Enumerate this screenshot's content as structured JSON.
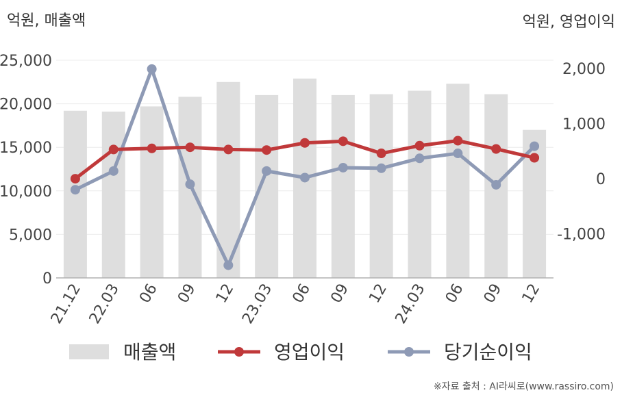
{
  "labels": {
    "left_unit": "억원, 매출액",
    "right_unit": "억원, 영업이익",
    "source": "※자료 출처 : AI라씨로(www.rassiro.com)"
  },
  "colors": {
    "bar": "#dedede",
    "operating": "#c0393a",
    "net": "#8e9ab5",
    "grid": "#ececec",
    "axis": "#b0b0b0"
  },
  "chart_data": {
    "type": "bar",
    "categories": [
      "21.12",
      "22.03",
      "06",
      "09",
      "12",
      "23.03",
      "06",
      "09",
      "12",
      "24.03",
      "06",
      "09",
      "12"
    ],
    "left_axis": {
      "ylim": [
        0,
        25000
      ],
      "ticks": [
        "0",
        "5,000",
        "10,000",
        "15,000",
        "20,000",
        "25,000"
      ],
      "tick_values": [
        0,
        5000,
        10000,
        15000,
        20000,
        25000
      ]
    },
    "right_axis": {
      "ylim": [
        -1800,
        2150
      ],
      "ticks": [
        "-1,000",
        "0",
        "1,000",
        "2,000"
      ],
      "tick_values": [
        -1000,
        0,
        1000,
        2000
      ]
    },
    "series": [
      {
        "name": "매출액",
        "type": "bar",
        "axis": "left",
        "values": [
          19200,
          19100,
          19700,
          20800,
          22500,
          21000,
          22900,
          21000,
          21100,
          21500,
          22300,
          21100,
          17000
        ]
      },
      {
        "name": "영업이익",
        "type": "line",
        "axis": "right",
        "values": [
          0,
          530,
          550,
          570,
          530,
          520,
          650,
          680,
          460,
          600,
          690,
          540,
          380
        ]
      },
      {
        "name": "당기순이익",
        "type": "line",
        "axis": "right",
        "values": [
          -200,
          140,
          1990,
          -100,
          -1570,
          140,
          20,
          200,
          190,
          370,
          460,
          -110,
          590
        ]
      }
    ],
    "legend": "bottom"
  }
}
